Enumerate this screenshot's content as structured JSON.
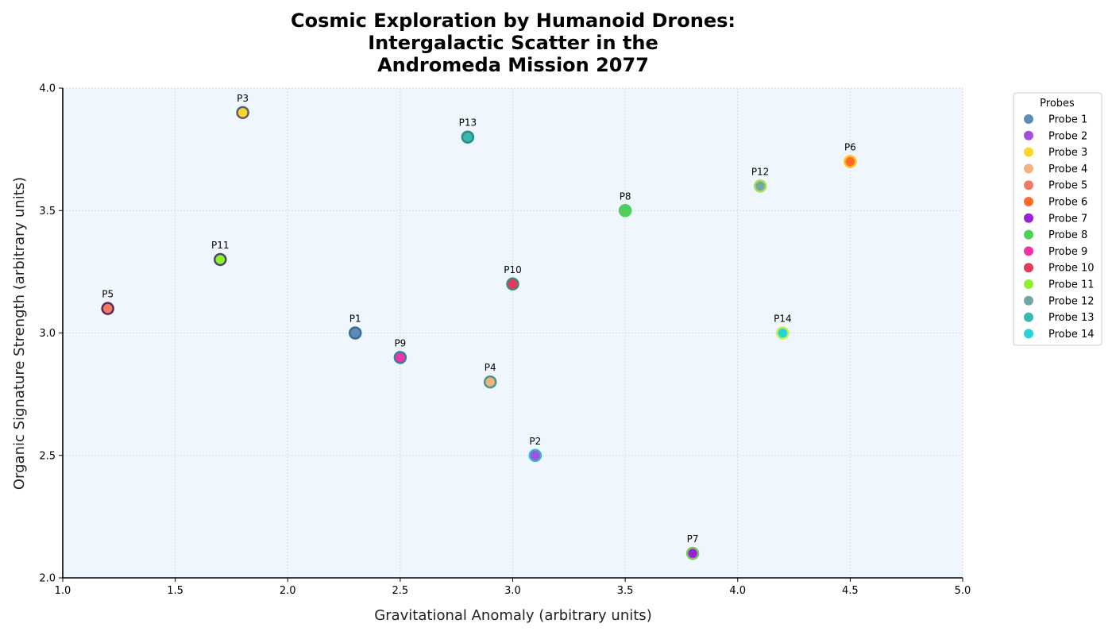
{
  "chart_data": {
    "type": "scatter",
    "title_lines": [
      "Cosmic Exploration by Humanoid Drones:",
      "Intergalactic Scatter in the",
      "Andromeda Mission 2077"
    ],
    "xlabel": "Gravitational Anomaly (arbitrary units)",
    "ylabel": "Organic Signature Strength (arbitrary units)",
    "xlim": [
      1.0,
      5.0
    ],
    "ylim": [
      2.0,
      4.0
    ],
    "xticks": [
      "1.0",
      "1.5",
      "2.0",
      "2.5",
      "3.0",
      "3.5",
      "4.0",
      "4.5",
      "5.0"
    ],
    "yticks": [
      "2.0",
      "2.5",
      "3.0",
      "3.5",
      "4.0"
    ],
    "grid": true,
    "plot_background": "#f0f6fe",
    "legend": {
      "title": "Probes",
      "placement": "outside-top-right"
    },
    "series": [
      {
        "name": "Probe 1",
        "label": "P1",
        "x": 2.3,
        "y": 3.0,
        "color": "#5b8db8",
        "edge": "#3e6a94"
      },
      {
        "name": "Probe 2",
        "label": "P2",
        "x": 3.1,
        "y": 2.5,
        "color": "#a44fe0",
        "edge": "#2fb8c8"
      },
      {
        "name": "Probe 3",
        "label": "P3",
        "x": 1.8,
        "y": 3.9,
        "color": "#f7d82a",
        "edge": "#5a5a80"
      },
      {
        "name": "Probe 4",
        "label": "P4",
        "x": 2.9,
        "y": 2.8,
        "color": "#f2b27e",
        "edge": "#3e9a8a"
      },
      {
        "name": "Probe 5",
        "label": "P5",
        "x": 1.2,
        "y": 3.1,
        "color": "#f47a63",
        "edge": "#5a2a5a"
      },
      {
        "name": "Probe 6",
        "label": "P6",
        "x": 4.5,
        "y": 3.7,
        "color": "#ff6a2a",
        "edge": "#ffc31a"
      },
      {
        "name": "Probe 7",
        "label": "P7",
        "x": 3.8,
        "y": 2.1,
        "color": "#9a22d6",
        "edge": "#7ac85a"
      },
      {
        "name": "Probe 8",
        "label": "P8",
        "x": 3.5,
        "y": 3.5,
        "color": "#4ecf5a",
        "edge": "#4ecf5a"
      },
      {
        "name": "Probe 9",
        "label": "P9",
        "x": 2.5,
        "y": 2.9,
        "color": "#f233a6",
        "edge": "#3e7a9a"
      },
      {
        "name": "Probe 10",
        "label": "P10",
        "x": 3.0,
        "y": 3.2,
        "color": "#e23a5c",
        "edge": "#3e8a7a"
      },
      {
        "name": "Probe 11",
        "label": "P11",
        "x": 1.7,
        "y": 3.3,
        "color": "#8ef22a",
        "edge": "#4a4a6a"
      },
      {
        "name": "Probe 12",
        "label": "P12",
        "x": 4.1,
        "y": 3.6,
        "color": "#74a6a6",
        "edge": "#a6e05a"
      },
      {
        "name": "Probe 13",
        "label": "P13",
        "x": 2.8,
        "y": 3.8,
        "color": "#38b7ae",
        "edge": "#2a8a8a"
      },
      {
        "name": "Probe 14",
        "label": "P14",
        "x": 4.2,
        "y": 3.0,
        "color": "#2ad2dc",
        "edge": "#c8f03a"
      }
    ]
  }
}
